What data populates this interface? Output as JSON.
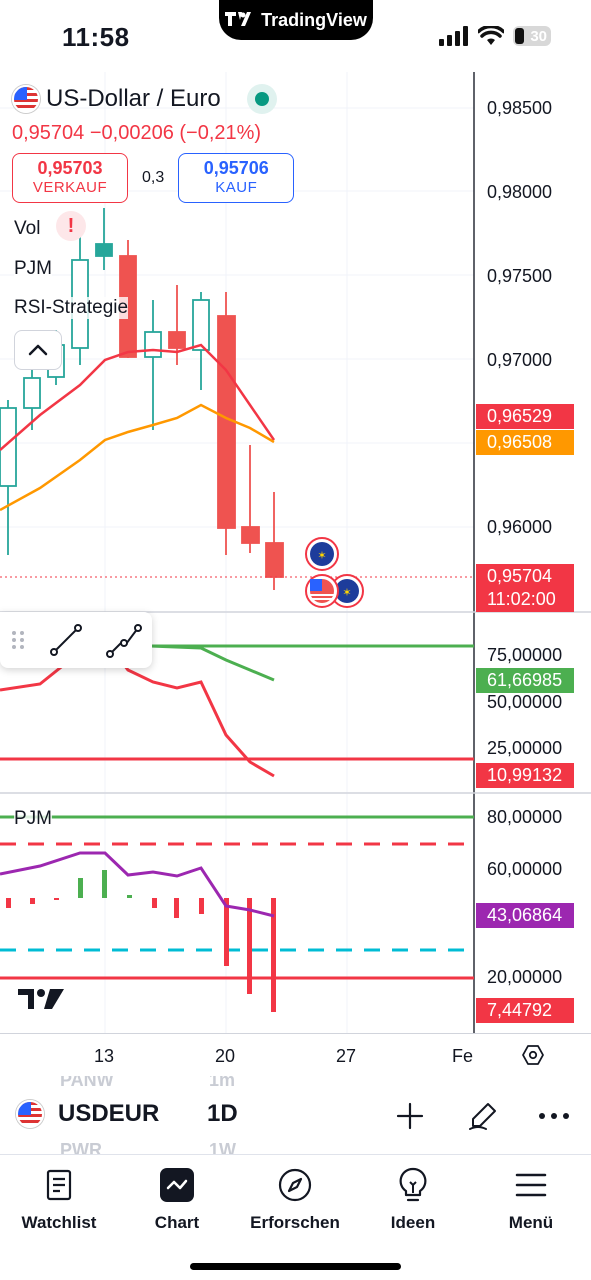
{
  "status_bar": {
    "time": "11:58",
    "island_text": "TradingView",
    "battery": "30"
  },
  "header": {
    "symbol_name": "US-Dollar / Euro",
    "price_change": "0,95704  −0,00206 (−0,21%)",
    "sell": {
      "price": "0,95703",
      "label": "VERKAUF"
    },
    "spread": "0,3",
    "buy": {
      "price": "0,95706",
      "label": "KAUF"
    },
    "indicators": [
      "Vol",
      "PJM",
      "RSI-Strategie"
    ],
    "warning_symbol": "!"
  },
  "price_axis": [
    "0,98500",
    "0,98000",
    "0,97500",
    "0,97000",
    "0,96000"
  ],
  "price_tags": [
    {
      "value": "0,96529",
      "color": "#f23645"
    },
    {
      "value": "0,96508",
      "color": "#ff9800"
    },
    {
      "value": "0,95704",
      "time": "11:02:00",
      "color": "#f23645"
    }
  ],
  "rsi_axis": [
    "75,00000",
    "50,00000",
    "25,00000"
  ],
  "rsi_tags": [
    {
      "value": "61,66985",
      "color": "#4caf50"
    },
    {
      "value": "10,99132",
      "color": "#f23645"
    }
  ],
  "pjm_panel": {
    "label": "PJM",
    "axis": [
      "80,00000",
      "60,00000",
      "20,00000"
    ],
    "tags": [
      {
        "value": "43,06864",
        "color": "#9c27b0"
      },
      {
        "value": "7,44792",
        "color": "#f23645"
      }
    ]
  },
  "time_axis": [
    "13",
    "20",
    "27",
    "Fe"
  ],
  "symbol_bar": {
    "symbol": "USDEUR",
    "interval": "1D",
    "ghost_above": {
      "symbol": "PANW",
      "interval": "1m"
    },
    "ghost_below": {
      "symbol": "PWR",
      "interval": "1W"
    }
  },
  "nav": [
    {
      "label": "Watchlist",
      "icon": "watchlist-icon"
    },
    {
      "label": "Chart",
      "icon": "chart-icon"
    },
    {
      "label": "Erforschen",
      "icon": "compass-icon"
    },
    {
      "label": "Ideen",
      "icon": "lightbulb-icon"
    },
    {
      "label": "Menü",
      "icon": "menu-icon"
    }
  ],
  "colors": {
    "up": "#26a69a",
    "down": "#ef5350",
    "accent": "#2962ff",
    "orange": "#ff9800",
    "green": "#4caf50",
    "purple": "#9c27b0",
    "cyan": "#00bcd4"
  }
}
